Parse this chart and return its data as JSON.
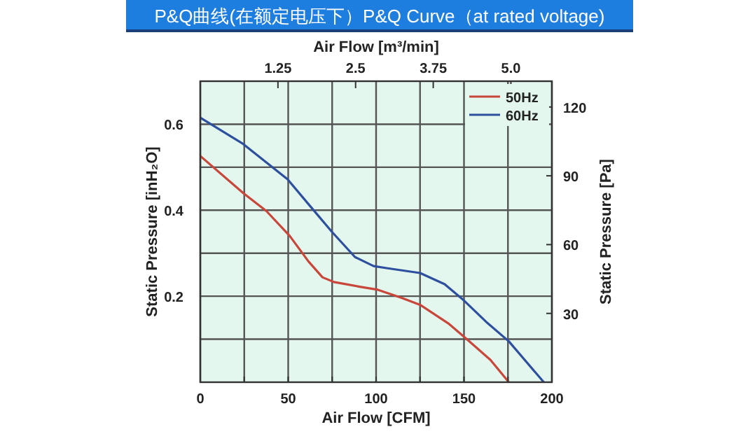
{
  "chart_data": {
    "type": "line",
    "title": "P&Q曲线(在额定电压下）P&Q Curve（at rated voltage)",
    "xlabel": "Air Flow  [CFM]",
    "ylabel": "Static Pressure [inH₂O]",
    "y2label": "Static Pressure [Pa]",
    "x2label": "Air Flow  [m³/min]",
    "xlim": [
      0,
      200
    ],
    "xticks": [
      0,
      {
        "value": 25,
        "label": null
      },
      50,
      {
        "value": 75,
        "label": null
      },
      100,
      {
        "value": 125,
        "label": null
      },
      150,
      {
        "value": 175,
        "label": null
      },
      200
    ],
    "ylim": [
      0,
      0.7
    ],
    "yticks": [
      {
        "value": 0.1,
        "label": null
      },
      0.2,
      {
        "value": 0.3,
        "label": null
      },
      0.4,
      {
        "value": 0.5,
        "label": null
      },
      0.6
    ],
    "y2lim": [
      0,
      131.25
    ],
    "y2ticks": [
      30,
      60,
      90,
      120
    ],
    "x2lim": [
      0,
      5.66
    ],
    "x2ticks": [
      1.25,
      2.5,
      3.75,
      {
        "value": 5,
        "label": "5.0"
      }
    ],
    "grid": true,
    "legend": "top right",
    "line_style": "solid",
    "marker": "none",
    "series": [
      {
        "name": "50Hz",
        "color": "#c8463a",
        "x": [
          0,
          24.4,
          37.6,
          50.9,
          61.5,
          69.5,
          76,
          90.7,
          101,
          114.5,
          125,
          141,
          151.6,
          165,
          175.5
        ],
        "values": [
          0.526,
          0.44,
          0.398,
          0.34,
          0.281,
          0.244,
          0.233,
          0.222,
          0.215,
          0.196,
          0.18,
          0.137,
          0.1,
          0.052,
          0
        ]
      },
      {
        "name": "60Hz",
        "color": "#2e4f9e",
        "x": [
          0,
          24.4,
          49.6,
          62.8,
          74.8,
          88,
          98.6,
          106.6,
          125,
          139,
          150,
          163.5,
          175.5,
          195.4
        ],
        "values": [
          0.615,
          0.554,
          0.472,
          0.408,
          0.35,
          0.291,
          0.27,
          0.265,
          0.254,
          0.228,
          0.19,
          0.137,
          0.095,
          0
        ]
      }
    ]
  }
}
